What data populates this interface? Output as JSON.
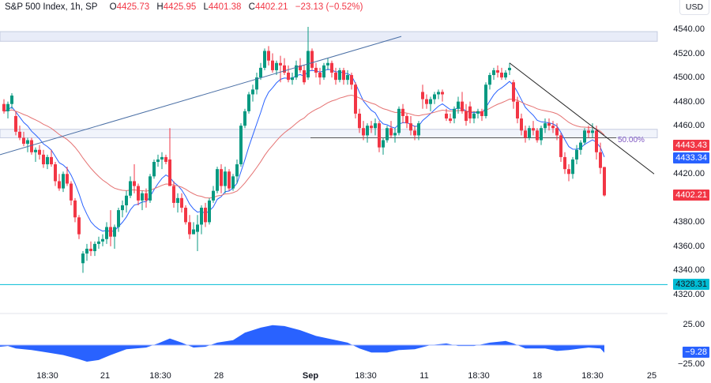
{
  "legend": {
    "symbol": "S&P 500 Index, 1h, SP",
    "open_label": "O",
    "open": "4425.73",
    "high_label": "H",
    "high": "4425.95",
    "low_label": "L",
    "low": "4401.38",
    "close_label": "C",
    "close": "4402.21",
    "change": "−23.13 (−0.52%)"
  },
  "currency_button": "USD",
  "price_axis": {
    "ticks": [
      "4540.00",
      "4520.00",
      "4500.00",
      "4480.00",
      "4460.00",
      "4420.00",
      "4380.00",
      "4360.00",
      "4340.00",
      "4320.00"
    ],
    "tick_values": [
      4540,
      4520,
      4500,
      4480,
      4460,
      4420,
      4380,
      4360,
      4340,
      4320
    ],
    "badges": [
      {
        "label": "4443.43",
        "value": 4443.43,
        "color": "#f23645",
        "name": "slow-ma-badge"
      },
      {
        "label": "4433.34",
        "value": 4433.34,
        "color": "#2962ff",
        "name": "fast-ma-badge"
      },
      {
        "label": "4402.21",
        "value": 4402.21,
        "color": "#f23645",
        "name": "last-price-badge"
      },
      {
        "label": "4328.31",
        "value": 4328.31,
        "color": "#00bcd4",
        "name": "support-line-badge",
        "textColor": "#131722"
      }
    ]
  },
  "oscillator_axis": {
    "ticks": [
      "25.00",
      "−25.00"
    ],
    "badge": {
      "label": "−9.28",
      "color": "#2962ff"
    }
  },
  "time_axis": {
    "labels": [
      {
        "text": "18:30",
        "x": 60
      },
      {
        "text": "21",
        "x": 133
      },
      {
        "text": "18:30",
        "x": 203
      },
      {
        "text": "28",
        "x": 277
      },
      {
        "text": "Sep",
        "x": 393,
        "bold": true
      },
      {
        "text": "18:30",
        "x": 463
      },
      {
        "text": "11",
        "x": 537
      },
      {
        "text": "18:30",
        "x": 606
      },
      {
        "text": "18",
        "x": 680
      },
      {
        "text": "18:30",
        "x": 750
      },
      {
        "text": "25",
        "x": 825
      }
    ]
  },
  "annotations": {
    "fib_label": "50.00%"
  },
  "colors": {
    "up": "#089981",
    "down": "#f23645",
    "fast_ma": "#2962ff",
    "slow_ma": "#e57373",
    "oscillator": "#2962ff",
    "zone_fill": "#e8ecf8",
    "zone_border": "#c5cbe0",
    "support": "#00bcd4",
    "trend_up": "#4a6fa5",
    "trend_down": "#222222"
  },
  "chart_data": {
    "type": "candlestick",
    "title": "S&P 500 Index, 1h, SP",
    "xlabel": "",
    "ylabel": "USD",
    "ylim": [
      4310,
      4545
    ],
    "x_tick_labels": [
      "18:30",
      "21",
      "18:30",
      "28",
      "Sep",
      "18:30",
      "11",
      "18:30",
      "18",
      "18:30",
      "25"
    ],
    "y_tick_labels": [
      "4320.00",
      "4340.00",
      "4360.00",
      "4380.00",
      "4420.00",
      "4460.00",
      "4480.00",
      "4500.00",
      "4520.00",
      "4540.00"
    ],
    "last": {
      "open": 4425.73,
      "high": 4425.95,
      "low": 4401.38,
      "close": 4402.21,
      "change": -23.13,
      "change_pct": -0.52
    },
    "moving_averages": [
      {
        "name": "fast MA",
        "last": 4433.34,
        "color": "#2962ff"
      },
      {
        "name": "slow MA",
        "last": 4443.43,
        "color": "#e57373"
      }
    ],
    "horizontal_levels": [
      {
        "name": "resistance zone",
        "from": 4530,
        "to": 4538
      },
      {
        "name": "mid zone",
        "from": 4450,
        "to": 4457
      },
      {
        "name": "50% fib",
        "value": 4450,
        "label": "50.00%"
      },
      {
        "name": "support",
        "value": 4328.31
      }
    ],
    "trendlines": [
      {
        "name": "rising trendline",
        "from": [
          0,
          4436
        ],
        "to": [
          508,
          4534
        ]
      },
      {
        "name": "falling trendline",
        "from": [
          645,
          4512
        ],
        "to": [
          828,
          4420
        ]
      }
    ],
    "oscillator": {
      "ylim": [
        -30,
        30
      ],
      "ticks": [
        25,
        -25
      ],
      "last": -9.28
    },
    "candles": [
      [
        5,
        4478,
        4482,
        4470,
        4472
      ],
      [
        10,
        4472,
        4480,
        4466,
        4478
      ],
      [
        15,
        4478,
        4487,
        4474,
        4485
      ],
      [
        20,
        4468,
        4472,
        4452,
        4455
      ],
      [
        25,
        4455,
        4460,
        4448,
        4450
      ],
      [
        30,
        4450,
        4455,
        4443,
        4445
      ],
      [
        35,
        4445,
        4450,
        4438,
        4448
      ],
      [
        40,
        4448,
        4450,
        4436,
        4438
      ],
      [
        45,
        4438,
        4442,
        4430,
        4440
      ],
      [
        50,
        4440,
        4444,
        4432,
        4436
      ],
      [
        55,
        4436,
        4440,
        4425,
        4428
      ],
      [
        60,
        4428,
        4436,
        4424,
        4434
      ],
      [
        65,
        4434,
        4440,
        4426,
        4428
      ],
      [
        70,
        4428,
        4430,
        4410,
        4414
      ],
      [
        75,
        4414,
        4420,
        4406,
        4408
      ],
      [
        80,
        4408,
        4422,
        4405,
        4420
      ],
      [
        85,
        4420,
        4426,
        4410,
        4412
      ],
      [
        90,
        4412,
        4414,
        4394,
        4398
      ],
      [
        95,
        4398,
        4400,
        4380,
        4384
      ],
      [
        100,
        4384,
        4386,
        4366,
        4370
      ],
      [
        105,
        4346,
        4356,
        4338,
        4354
      ],
      [
        110,
        4354,
        4362,
        4348,
        4358
      ],
      [
        115,
        4358,
        4364,
        4352,
        4356
      ],
      [
        120,
        4356,
        4364,
        4352,
        4362
      ],
      [
        125,
        4362,
        4368,
        4358,
        4364
      ],
      [
        130,
        4364,
        4370,
        4360,
        4366
      ],
      [
        135,
        4366,
        4380,
        4362,
        4376
      ],
      [
        140,
        4376,
        4390,
        4360,
        4368
      ],
      [
        145,
        4368,
        4378,
        4358,
        4376
      ],
      [
        150,
        4376,
        4392,
        4372,
        4390
      ],
      [
        155,
        4390,
        4398,
        4384,
        4394
      ],
      [
        160,
        4394,
        4406,
        4388,
        4402
      ],
      [
        165,
        4402,
        4418,
        4400,
        4414
      ],
      [
        170,
        4414,
        4428,
        4404,
        4410
      ],
      [
        175,
        4410,
        4412,
        4394,
        4398
      ],
      [
        180,
        4398,
        4406,
        4390,
        4404
      ],
      [
        185,
        4404,
        4408,
        4392,
        4398
      ],
      [
        190,
        4398,
        4420,
        4396,
        4418
      ],
      [
        195,
        4418,
        4432,
        4416,
        4430
      ],
      [
        200,
        4430,
        4436,
        4426,
        4432
      ],
      [
        205,
        4432,
        4438,
        4424,
        4434
      ],
      [
        210,
        4434,
        4436,
        4428,
        4430
      ],
      [
        215,
        4432,
        4458,
        4426,
        4410
      ],
      [
        220,
        4410,
        4414,
        4392,
        4396
      ],
      [
        225,
        4396,
        4404,
        4388,
        4400
      ],
      [
        230,
        4400,
        4404,
        4388,
        4392
      ],
      [
        235,
        4392,
        4394,
        4378,
        4380
      ],
      [
        240,
        4380,
        4386,
        4366,
        4370
      ],
      [
        245,
        4370,
        4380,
        4374,
        4374
      ],
      [
        250,
        4372,
        4386,
        4356,
        4378
      ],
      [
        255,
        4378,
        4394,
        4370,
        4392
      ],
      [
        260,
        4392,
        4396,
        4376,
        4380
      ],
      [
        265,
        4380,
        4400,
        4378,
        4398
      ],
      [
        270,
        4398,
        4410,
        4396,
        4406
      ],
      [
        275,
        4406,
        4426,
        4404,
        4424
      ],
      [
        280,
        4424,
        4428,
        4404,
        4410
      ],
      [
        285,
        4410,
        4426,
        4404,
        4422
      ],
      [
        290,
        4422,
        4424,
        4406,
        4408
      ],
      [
        295,
        4408,
        4420,
        4406,
        4418
      ],
      [
        300,
        4418,
        4432,
        4412,
        4428
      ],
      [
        305,
        4428,
        4462,
        4426,
        4460
      ],
      [
        310,
        4460,
        4474,
        4458,
        4472
      ],
      [
        315,
        4472,
        4488,
        4470,
        4486
      ],
      [
        320,
        4486,
        4494,
        4480,
        4490
      ],
      [
        325,
        4490,
        4504,
        4486,
        4500
      ],
      [
        330,
        4500,
        4512,
        4498,
        4508
      ],
      [
        335,
        4508,
        4524,
        4506,
        4522
      ],
      [
        340,
        4522,
        4526,
        4510,
        4514
      ],
      [
        345,
        4514,
        4520,
        4504,
        4506
      ],
      [
        350,
        4506,
        4514,
        4502,
        4512
      ],
      [
        355,
        4512,
        4518,
        4496,
        4510
      ],
      [
        360,
        4510,
        4516,
        4502,
        4504
      ],
      [
        365,
        4504,
        4510,
        4496,
        4498
      ],
      [
        370,
        4498,
        4504,
        4494,
        4500
      ],
      [
        375,
        4500,
        4514,
        4498,
        4510
      ],
      [
        380,
        4510,
        4516,
        4504,
        4506
      ],
      [
        385,
        4506,
        4510,
        4494,
        4496
      ],
      [
        390,
        4500,
        4542,
        4498,
        4522
      ],
      [
        395,
        4522,
        4524,
        4506,
        4508
      ],
      [
        400,
        4508,
        4512,
        4500,
        4504
      ],
      [
        405,
        4504,
        4508,
        4494,
        4500
      ],
      [
        410,
        4500,
        4512,
        4498,
        4510
      ],
      [
        415,
        4510,
        4516,
        4506,
        4512
      ],
      [
        420,
        4512,
        4514,
        4500,
        4504
      ],
      [
        425,
        4504,
        4508,
        4494,
        4498
      ],
      [
        430,
        4498,
        4508,
        4496,
        4506
      ],
      [
        435,
        4506,
        4508,
        4494,
        4498
      ],
      [
        440,
        4498,
        4506,
        4494,
        4502
      ],
      [
        445,
        4502,
        4504,
        4490,
        4494
      ],
      [
        450,
        4494,
        4496,
        4466,
        4470
      ],
      [
        455,
        4470,
        4474,
        4454,
        4458
      ],
      [
        460,
        4458,
        4464,
        4448,
        4452
      ],
      [
        465,
        4452,
        4462,
        4446,
        4460
      ],
      [
        470,
        4460,
        4464,
        4454,
        4458
      ],
      [
        475,
        4458,
        4466,
        4452,
        4462
      ],
      [
        480,
        4462,
        4464,
        4438,
        4442
      ],
      [
        485,
        4442,
        4450,
        4436,
        4448
      ],
      [
        490,
        4448,
        4460,
        4446,
        4458
      ],
      [
        495,
        4458,
        4464,
        4450,
        4452
      ],
      [
        500,
        4452,
        4458,
        4446,
        4454
      ],
      [
        505,
        4454,
        4476,
        4452,
        4474
      ],
      [
        510,
        4474,
        4478,
        4462,
        4468
      ],
      [
        515,
        4468,
        4470,
        4458,
        4462
      ],
      [
        520,
        4462,
        4468,
        4452,
        4456
      ],
      [
        525,
        4456,
        4460,
        4448,
        4452
      ],
      [
        530,
        4452,
        4464,
        4448,
        4462
      ],
      [
        535,
        4488,
        4494,
        4474,
        4482
      ],
      [
        540,
        4482,
        4486,
        4474,
        4478
      ],
      [
        545,
        4478,
        4484,
        4472,
        4482
      ],
      [
        550,
        4482,
        4488,
        4478,
        4486
      ],
      [
        555,
        4486,
        4490,
        4482,
        4488
      ],
      [
        560,
        4488,
        4490,
        4480,
        4486
      ],
      [
        565,
        4470,
        4474,
        4464,
        4466
      ],
      [
        570,
        4466,
        4470,
        4462,
        4464
      ],
      [
        575,
        4466,
        4476,
        4462,
        4474
      ],
      [
        580,
        4474,
        4484,
        4470,
        4480
      ],
      [
        585,
        4480,
        4488,
        4470,
        4472
      ],
      [
        590,
        4472,
        4478,
        4460,
        4464
      ],
      [
        595,
        4476,
        4480,
        4462,
        4466
      ],
      [
        600,
        4466,
        4472,
        4462,
        4470
      ],
      [
        605,
        4470,
        4474,
        4466,
        4472
      ],
      [
        610,
        4472,
        4474,
        4464,
        4468
      ],
      [
        615,
        4468,
        4496,
        4466,
        4494
      ],
      [
        620,
        4494,
        4504,
        4490,
        4502
      ],
      [
        625,
        4502,
        4508,
        4498,
        4506
      ],
      [
        630,
        4506,
        4510,
        4500,
        4504
      ],
      [
        635,
        4504,
        4508,
        4498,
        4500
      ],
      [
        640,
        4500,
        4506,
        4498,
        4504
      ],
      [
        645,
        4506,
        4512,
        4502,
        4508
      ],
      [
        650,
        4496,
        4498,
        4474,
        4480
      ],
      [
        655,
        4480,
        4484,
        4462,
        4466
      ],
      [
        660,
        4466,
        4470,
        4452,
        4456
      ],
      [
        665,
        4456,
        4460,
        4446,
        4450
      ],
      [
        670,
        4450,
        4460,
        4448,
        4458
      ],
      [
        675,
        4458,
        4464,
        4452,
        4456
      ],
      [
        680,
        4456,
        4458,
        4446,
        4448
      ],
      [
        685,
        4448,
        4460,
        4444,
        4458
      ],
      [
        690,
        4458,
        4466,
        4454,
        4462
      ],
      [
        695,
        4462,
        4466,
        4456,
        4460
      ],
      [
        700,
        4460,
        4464,
        4454,
        4458
      ],
      [
        705,
        4458,
        4462,
        4448,
        4452
      ],
      [
        710,
        4452,
        4454,
        4430,
        4434
      ],
      [
        715,
        4434,
        4438,
        4420,
        4424
      ],
      [
        720,
        4424,
        4428,
        4414,
        4420
      ],
      [
        725,
        4420,
        4434,
        4416,
        4432
      ],
      [
        730,
        4432,
        4444,
        4428,
        4440
      ],
      [
        735,
        4440,
        4448,
        4436,
        4446
      ],
      [
        740,
        4446,
        4458,
        4444,
        4456
      ],
      [
        745,
        4456,
        4460,
        4450,
        4454
      ],
      [
        750,
        4454,
        4462,
        4450,
        4456
      ],
      [
        755,
        4456,
        4460,
        4432,
        4438
      ],
      [
        760,
        4438,
        4446,
        4420,
        4425
      ],
      [
        765,
        4425.73,
        4425.95,
        4401.38,
        4402.21
      ]
    ]
  }
}
